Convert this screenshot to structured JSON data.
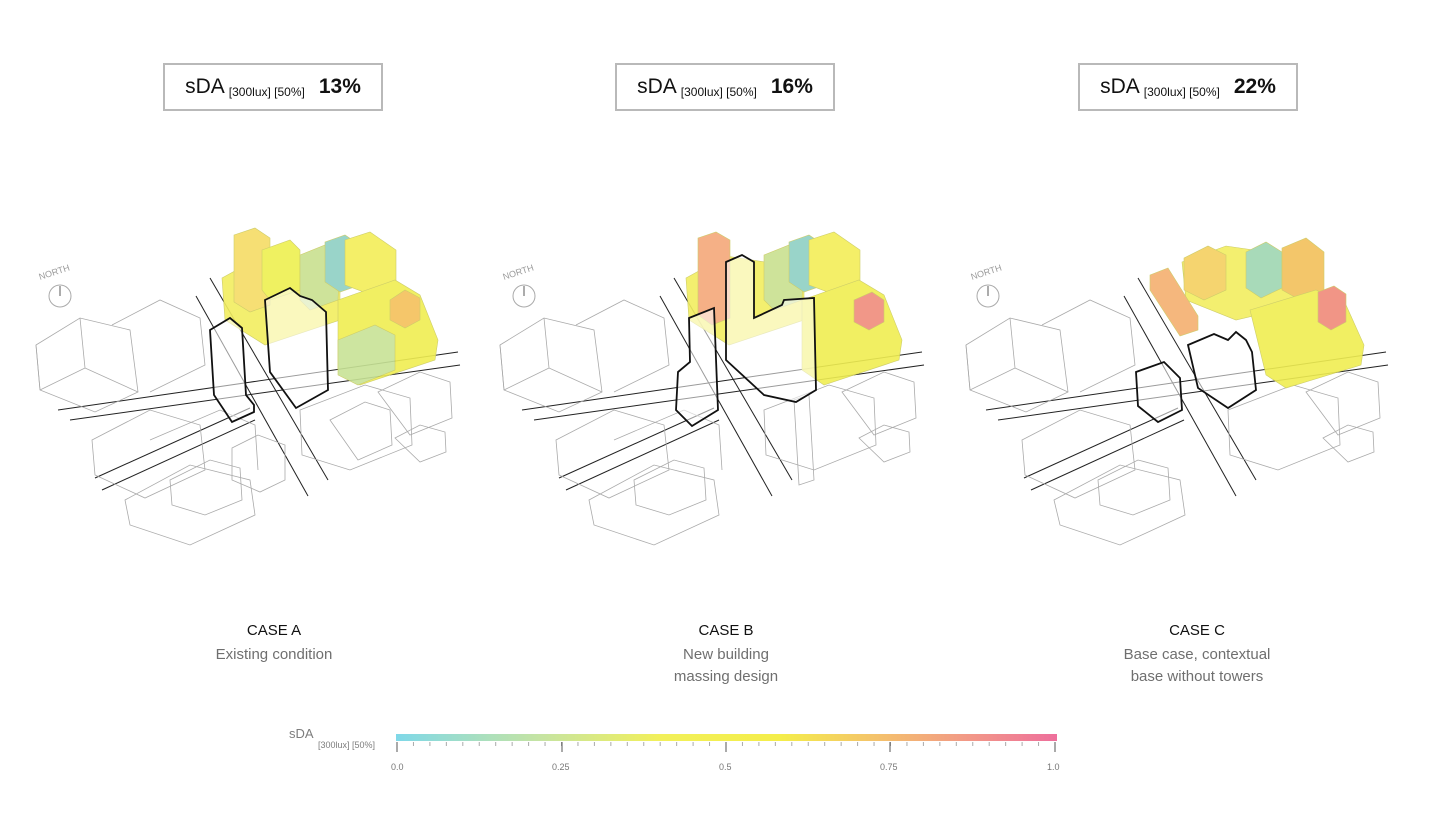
{
  "cases": [
    {
      "metric_name": "sDA",
      "metric_sub": "[300lux] [50%]",
      "metric_value": "13%",
      "title": "CASE A",
      "desc": [
        "Existing condition"
      ],
      "north_label": "NORTH"
    },
    {
      "metric_name": "sDA",
      "metric_sub": "[300lux] [50%]",
      "metric_value": "16%",
      "title": "CASE B",
      "desc": [
        "New building",
        "massing design"
      ],
      "north_label": "NORTH"
    },
    {
      "metric_name": "sDA",
      "metric_sub": "[300lux] [50%]",
      "metric_value": "22%",
      "title": "CASE C",
      "desc": [
        "Base case, contextual",
        "base without towers"
      ],
      "north_label": "NORTH"
    }
  ],
  "legend": {
    "title": "sDA",
    "sub": "[300lux] [50%]",
    "ticks": [
      "0.0",
      "0.25",
      "0.5",
      "0.75",
      "1.0"
    ],
    "colors": [
      "#7fd8e8",
      "#c6e4a2",
      "#f2f05a",
      "#f4c46a",
      "#f29a86",
      "#ee6f9c"
    ]
  }
}
